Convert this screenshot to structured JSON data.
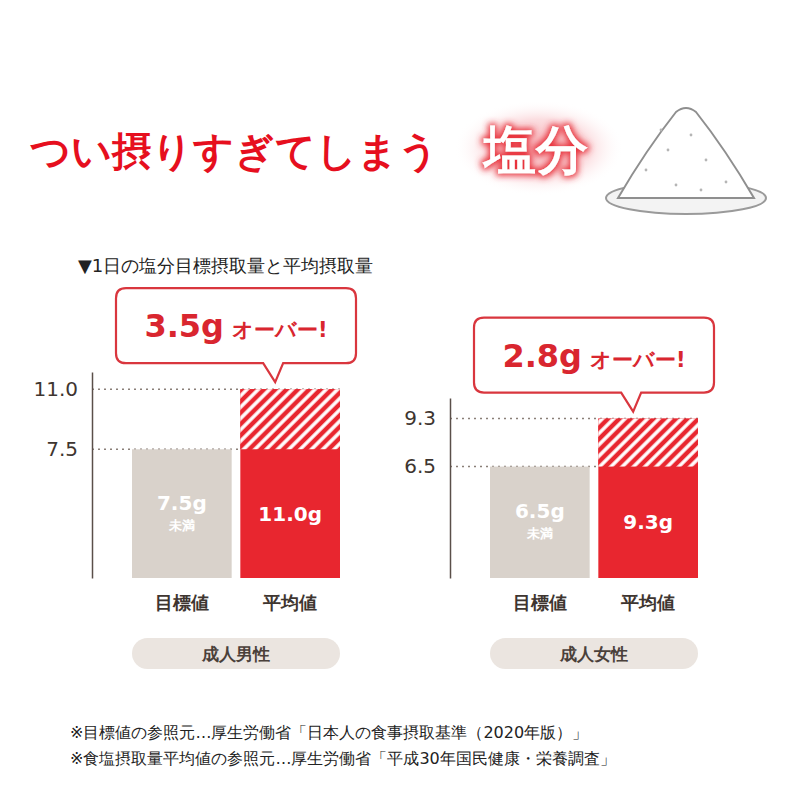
{
  "headline": "つい摂りすぎてしまう",
  "headline_highlight": "塩分",
  "subtitle": "▼1日の塩分目標摂取量と平均摂取量",
  "chart_data": [
    {
      "type": "bar",
      "title": "成人男性",
      "categories": [
        "目標値",
        "平均値"
      ],
      "values": [
        7.5,
        11.0
      ],
      "value_labels": [
        "7.5g 未満",
        "11.0g"
      ],
      "data_labels": true,
      "colors": [
        "#d9d2cb",
        "#e8262f"
      ],
      "ylim": [
        0,
        12
      ],
      "yticks": [
        7.5,
        {
          "value": 11,
          "label": "11.0"
        }
      ],
      "grid": true,
      "annotations": [
        "3.5g オーバー!"
      ]
    },
    {
      "type": "bar",
      "title": "成人女性",
      "categories": [
        "目標値",
        "平均値"
      ],
      "values": [
        6.5,
        9.3
      ],
      "value_labels": [
        "6.5g 未満",
        "9.3g"
      ],
      "data_labels": true,
      "colors": [
        "#d9d2cb",
        "#e8262f"
      ],
      "ylim": [
        0,
        10.5
      ],
      "yticks": [
        6.5,
        9.3
      ],
      "grid": true,
      "annotations": [
        "2.8g オーバー!"
      ]
    }
  ],
  "notes": [
    "※目標値の参照元…厚生労働省「日本人の食事摂取基準（2020年版）」",
    "※食塩摂取量平均値の参照元…厚生労働省「平成30年国民健康・栄養調査」"
  ]
}
